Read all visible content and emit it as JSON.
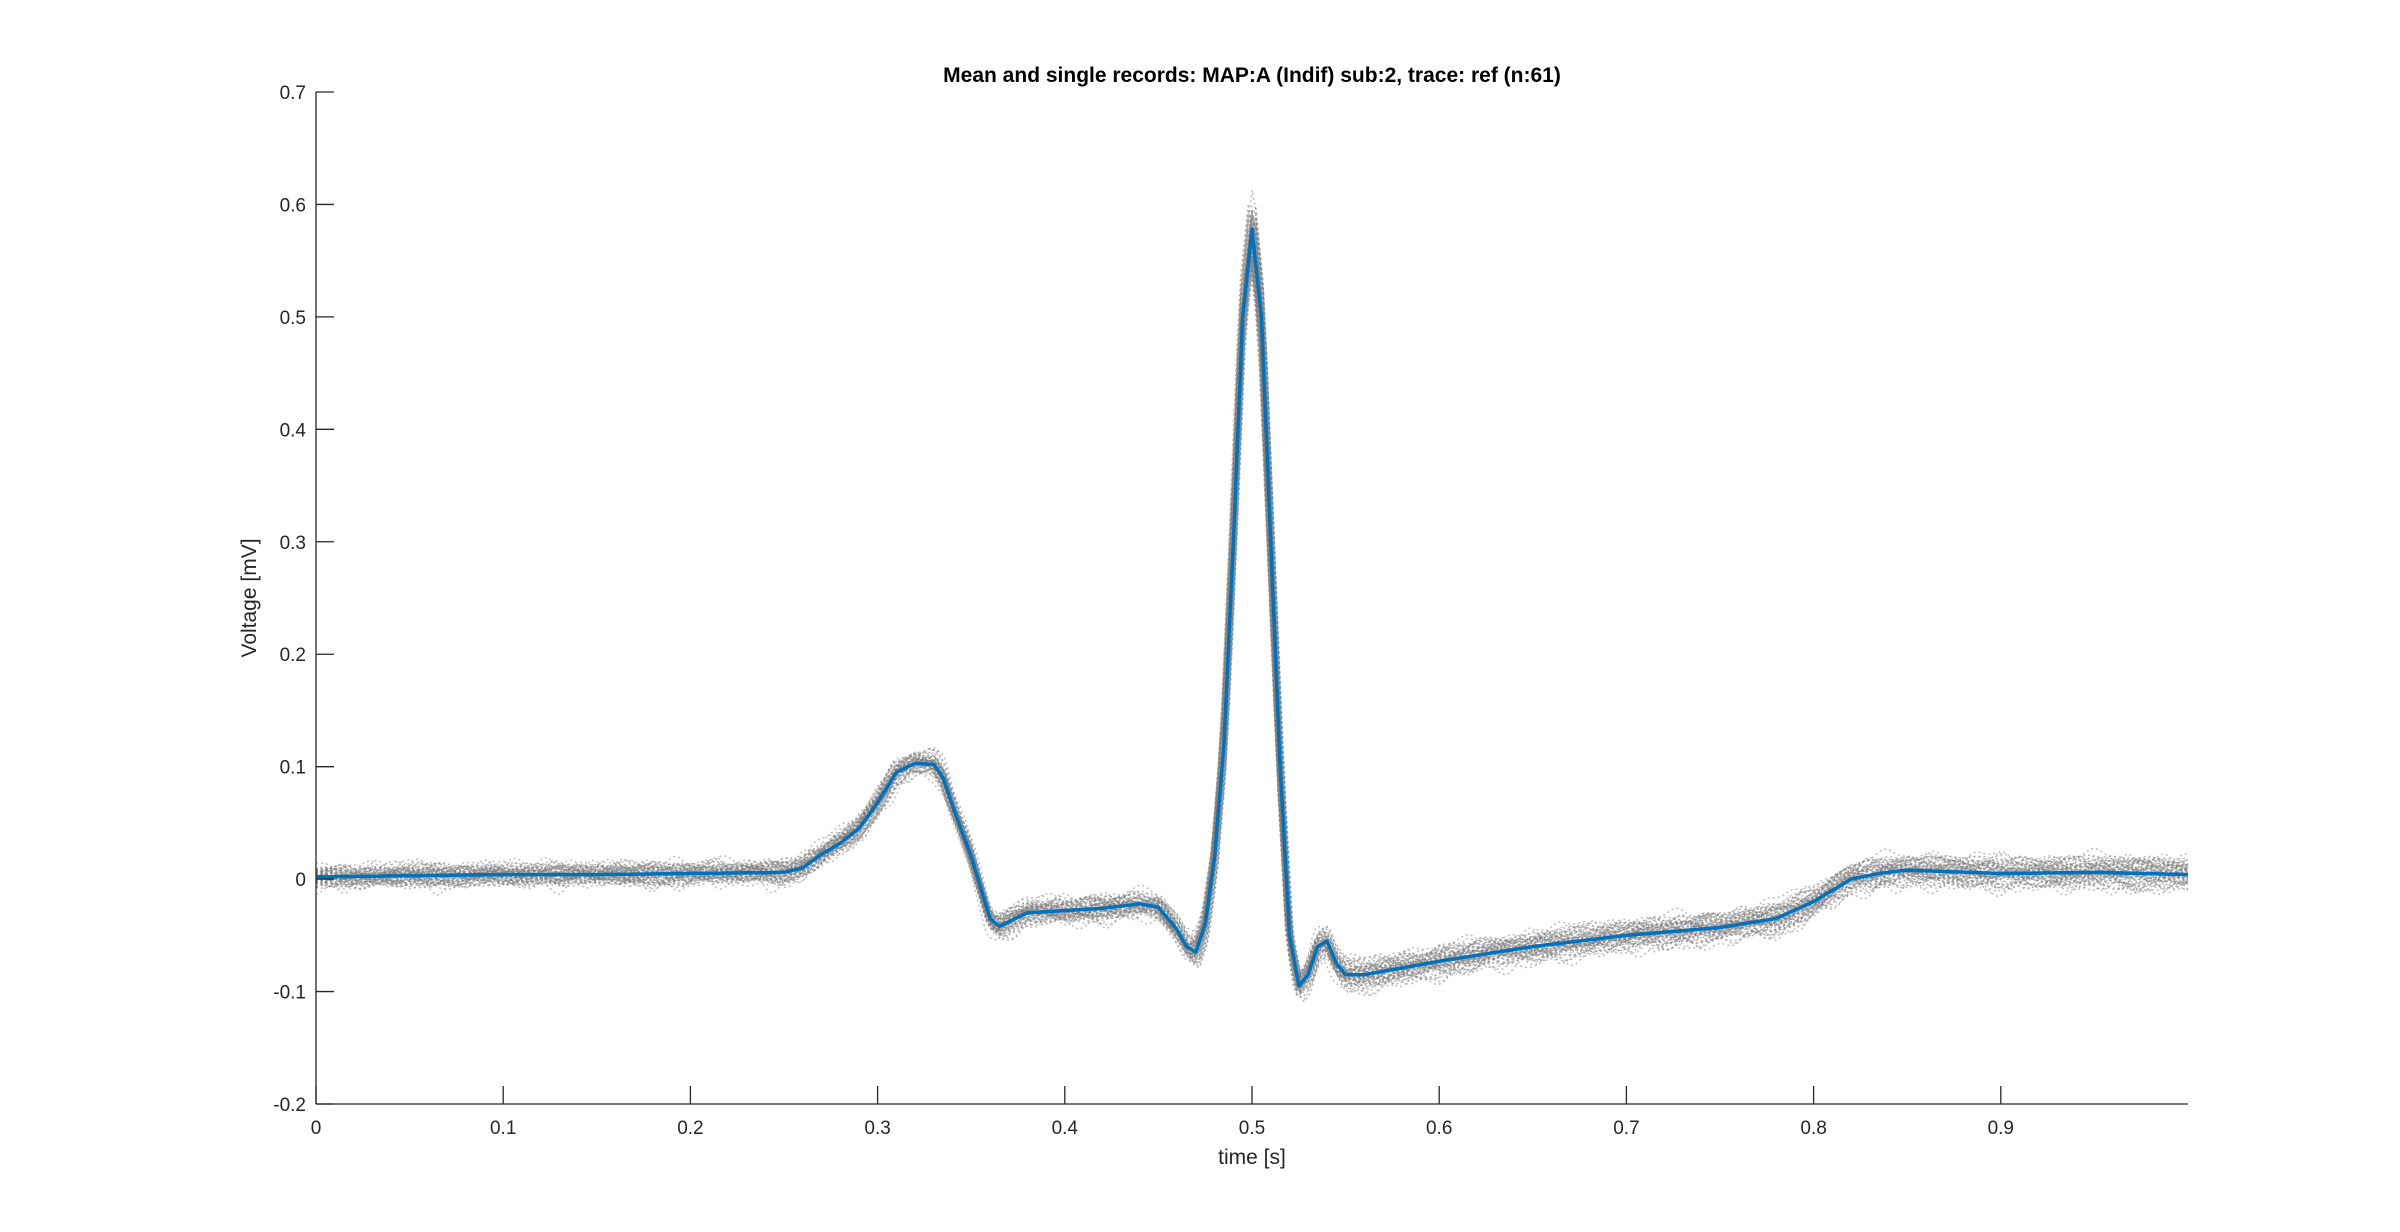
{
  "chart_data": {
    "type": "line",
    "title": "Mean and single records: MAP:A (Indif) sub:2, trace: ref (n:61)",
    "xlabel": "time [s]",
    "ylabel": "Voltage [mV]",
    "xlim": [
      0,
      1.0
    ],
    "ylim": [
      -0.2,
      0.7
    ],
    "xticks": [
      0,
      0.1,
      0.2,
      0.3,
      0.4,
      0.5,
      0.6,
      0.7,
      0.8,
      0.9
    ],
    "xtick_labels": [
      "0",
      "0.1",
      "0.2",
      "0.3",
      "0.4",
      "0.5",
      "0.6",
      "0.7",
      "0.8",
      "0.9"
    ],
    "yticks": [
      -0.2,
      -0.1,
      0,
      0.1,
      0.2,
      0.3,
      0.4,
      0.5,
      0.6,
      0.7
    ],
    "ytick_labels": [
      "-0.2",
      "-0.1",
      "0",
      "0.1",
      "0.2",
      "0.3",
      "0.4",
      "0.5",
      "0.6",
      "0.7"
    ],
    "grid": false,
    "legend": "none",
    "colors": {
      "mean": "#0072BD",
      "single": "#7f7f7f",
      "axes": "#262626"
    },
    "series": [
      {
        "role": "mean",
        "style": "solid",
        "x": [
          0,
          0.05,
          0.1,
          0.15,
          0.2,
          0.25,
          0.26,
          0.27,
          0.28,
          0.29,
          0.3,
          0.31,
          0.32,
          0.33,
          0.335,
          0.34,
          0.35,
          0.36,
          0.365,
          0.37,
          0.38,
          0.4,
          0.42,
          0.44,
          0.45,
          0.46,
          0.465,
          0.47,
          0.475,
          0.48,
          0.485,
          0.49,
          0.495,
          0.5,
          0.505,
          0.51,
          0.515,
          0.52,
          0.525,
          0.53,
          0.535,
          0.54,
          0.545,
          0.55,
          0.56,
          0.6,
          0.65,
          0.7,
          0.75,
          0.78,
          0.8,
          0.82,
          0.835,
          0.85,
          0.9,
          0.95,
          1.0
        ],
        "y": [
          0.002,
          0.003,
          0.004,
          0.004,
          0.005,
          0.006,
          0.01,
          0.022,
          0.032,
          0.045,
          0.068,
          0.095,
          0.103,
          0.102,
          0.09,
          0.065,
          0.02,
          -0.035,
          -0.042,
          -0.038,
          -0.03,
          -0.028,
          -0.026,
          -0.022,
          -0.025,
          -0.045,
          -0.06,
          -0.065,
          -0.04,
          0.02,
          0.12,
          0.3,
          0.5,
          0.578,
          0.5,
          0.3,
          0.1,
          -0.05,
          -0.095,
          -0.085,
          -0.06,
          -0.055,
          -0.075,
          -0.085,
          -0.085,
          -0.073,
          -0.06,
          -0.05,
          -0.043,
          -0.035,
          -0.02,
          0.0,
          0.005,
          0.008,
          0.005,
          0.006,
          0.004
        ]
      }
    ],
    "single_record_count": 61
  }
}
